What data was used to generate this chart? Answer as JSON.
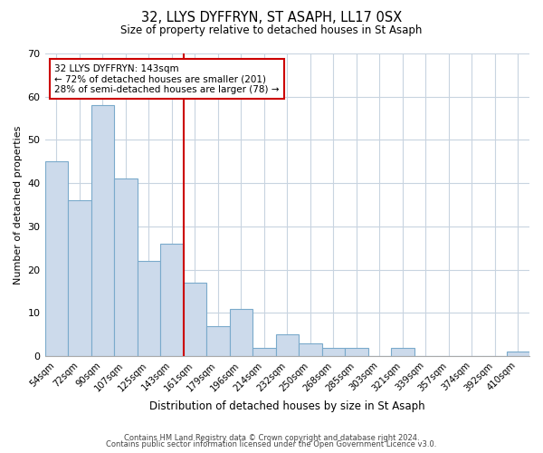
{
  "title": "32, LLYS DYFFRYN, ST ASAPH, LL17 0SX",
  "subtitle": "Size of property relative to detached houses in St Asaph",
  "xlabel": "Distribution of detached houses by size in St Asaph",
  "ylabel": "Number of detached properties",
  "bar_color": "#ccdaeb",
  "bar_edge_color": "#7aaacb",
  "categories": [
    "54sqm",
    "72sqm",
    "90sqm",
    "107sqm",
    "125sqm",
    "143sqm",
    "161sqm",
    "179sqm",
    "196sqm",
    "214sqm",
    "232sqm",
    "250sqm",
    "268sqm",
    "285sqm",
    "303sqm",
    "321sqm",
    "339sqm",
    "357sqm",
    "374sqm",
    "392sqm",
    "410sqm"
  ],
  "values": [
    45,
    36,
    58,
    41,
    22,
    26,
    17,
    7,
    11,
    2,
    5,
    3,
    2,
    2,
    0,
    2,
    0,
    0,
    0,
    0,
    1
  ],
  "ylim": [
    0,
    70
  ],
  "yticks": [
    0,
    10,
    20,
    30,
    40,
    50,
    60,
    70
  ],
  "marker_index": 5,
  "marker_line_color": "#cc0000",
  "annotation_text": "32 LLYS DYFFRYN: 143sqm\n← 72% of detached houses are smaller (201)\n28% of semi-detached houses are larger (78) →",
  "annotation_box_edge_color": "#cc0000",
  "footer_line1": "Contains HM Land Registry data © Crown copyright and database right 2024.",
  "footer_line2": "Contains public sector information licensed under the Open Government Licence v3.0.",
  "background_color": "#ffffff",
  "grid_color": "#c8d4e0"
}
